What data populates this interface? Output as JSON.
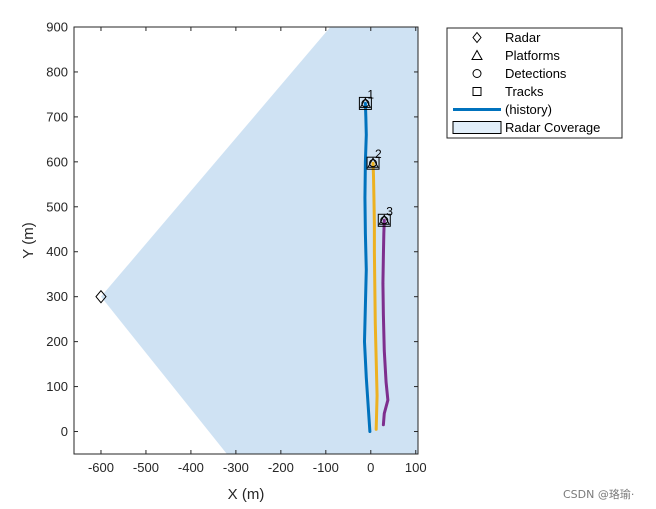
{
  "chart_data": {
    "type": "line",
    "xlabel": "X (m)",
    "ylabel": "Y (m)",
    "xlim": [
      -660,
      105
    ],
    "ylim": [
      -50,
      900
    ],
    "xticks": [
      -600,
      -500,
      -400,
      -300,
      -200,
      -100,
      0,
      100
    ],
    "yticks": [
      0,
      100,
      200,
      300,
      400,
      500,
      600,
      700,
      800,
      900
    ],
    "grid": false,
    "legend_position": "outside-top-right",
    "legend": [
      {
        "label": "Radar",
        "marker": "diamond"
      },
      {
        "label": "Platforms",
        "marker": "triangle"
      },
      {
        "label": "Detections",
        "marker": "circle"
      },
      {
        "label": "Tracks",
        "marker": "square"
      },
      {
        "label": "(history)",
        "marker": "line"
      },
      {
        "label": "Radar Coverage",
        "marker": "patch"
      }
    ],
    "radar": {
      "x": -600,
      "y": 300
    },
    "coverage": {
      "color": "#cfe2f3",
      "polygon": [
        [
          -600,
          300
        ],
        [
          -90,
          900
        ],
        [
          105,
          900
        ],
        [
          105,
          -50
        ],
        [
          -320,
          -50
        ]
      ]
    },
    "tracks": [
      {
        "id": "1",
        "color": "#0072bd",
        "current": {
          "x": -12,
          "y": 730
        },
        "history": {
          "x": [
            -2,
            -6,
            -10,
            -14,
            -12,
            -10,
            -12,
            -13,
            -12,
            -10,
            -11,
            -12
          ],
          "y": [
            0,
            60,
            120,
            200,
            280,
            360,
            440,
            520,
            600,
            660,
            700,
            730
          ]
        }
      },
      {
        "id": "2",
        "color": "#edb120",
        "current": {
          "x": 5,
          "y": 597
        },
        "history": {
          "x": [
            12,
            14,
            12,
            10,
            9,
            8,
            8,
            7,
            6,
            5
          ],
          "y": [
            5,
            80,
            160,
            240,
            320,
            400,
            460,
            520,
            570,
            597
          ]
        }
      },
      {
        "id": "3",
        "color": "#7e2f8e",
        "current": {
          "x": 30,
          "y": 470
        },
        "history": {
          "x": [
            28,
            30,
            38,
            34,
            30,
            28,
            27,
            28,
            29,
            30
          ],
          "y": [
            15,
            40,
            70,
            110,
            180,
            260,
            330,
            390,
            440,
            470
          ]
        }
      }
    ]
  },
  "watermark": "CSDN @珞瑜·"
}
